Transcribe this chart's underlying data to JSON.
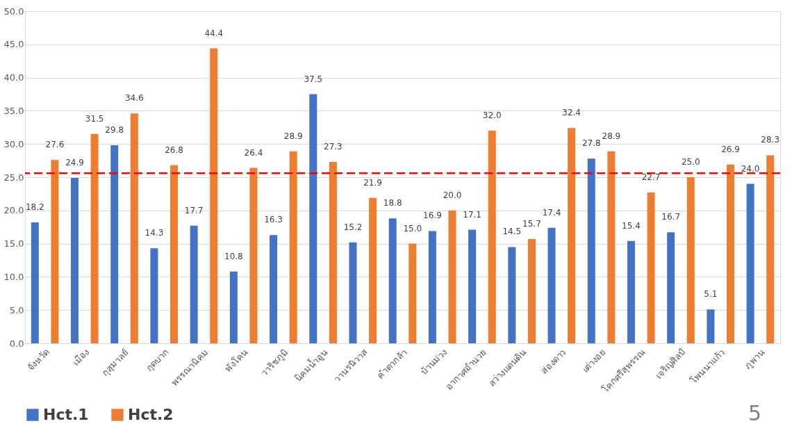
{
  "chart_data": {
    "type": "bar",
    "categories": [
      "จังหวัด",
      "เมือง",
      "กุสุมาลย์",
      "กุดบาก",
      "พรรณานิคม",
      "พังโคน",
      "วาริชภูมิ",
      "นิคมน้ำอูน",
      "วานรนิวาส",
      "คำตากล้า",
      "บ้านม่วง",
      "อากาศอำนวย",
      "สว่างแดนดิน",
      "ส่องดาว",
      "เต่างอย",
      "โคกศรีสุพรรณ",
      "เจริญศิลป์",
      "โพนนาแก้ว",
      "ภูพาน"
    ],
    "series": [
      {
        "name": "Hct.1",
        "color": "#4472c4",
        "values": [
          18.2,
          24.9,
          29.8,
          14.3,
          17.7,
          10.8,
          16.3,
          37.5,
          15.2,
          18.8,
          16.9,
          17.1,
          14.5,
          17.4,
          27.8,
          15.4,
          16.7,
          5.1,
          24.0
        ],
        "value_labels": [
          "18.2",
          "24.9",
          "29.8",
          "14.3",
          "17.7",
          "10.8",
          "16.3",
          "37.5",
          "15.2",
          "18.8",
          "16.9",
          "17.1",
          "14.5",
          "17.4",
          "27.8",
          "15.4",
          "16.7",
          "5.1",
          "24.0"
        ]
      },
      {
        "name": "Hct.2",
        "color": "#ed7d31",
        "values": [
          27.6,
          31.5,
          34.6,
          26.8,
          44.4,
          26.4,
          28.9,
          27.3,
          21.9,
          15.0,
          20.0,
          32.0,
          15.7,
          32.4,
          28.9,
          22.7,
          25.0,
          26.9,
          28.3
        ],
        "value_labels": [
          "27.6",
          "31.5",
          "34.6",
          "26.8",
          "44.4",
          "26.4",
          "28.9",
          "27.3",
          "21.9",
          "15.0",
          "20.0",
          "32.0",
          "15.7",
          "32.4",
          "28.9",
          "22.7",
          "25.0",
          "26.9",
          "28.3"
        ]
      }
    ],
    "ylim": [
      0,
      50
    ],
    "yticks": [
      {
        "value": 0,
        "label": "0.0"
      },
      {
        "value": 5,
        "label": "5.0"
      },
      {
        "value": 10,
        "label": "10.0"
      },
      {
        "value": 15,
        "label": "15.0"
      },
      {
        "value": 20,
        "label": "20.0"
      },
      {
        "value": 25,
        "label": "25.0"
      },
      {
        "value": 30,
        "label": "30.0"
      },
      {
        "value": 35,
        "label": "35.0"
      },
      {
        "value": 40,
        "label": "40.0"
      },
      {
        "value": 45,
        "label": "45.0"
      },
      {
        "value": 50,
        "label": "50.0"
      }
    ],
    "ref_lines": [
      {
        "axis": "y",
        "value": 25.6,
        "color": "#ff0000",
        "line_style": "dashed"
      }
    ],
    "grid": "y",
    "legend": "bottom",
    "annotations": [
      "5"
    ]
  }
}
